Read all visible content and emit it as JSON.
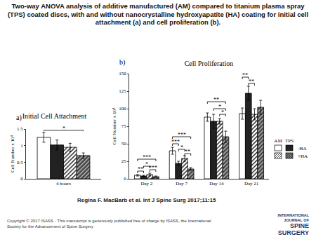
{
  "page": {
    "title": "Two-way ANOVA analysis of additive manufactured (AM) compared to titanium plasma spray (TPS) coated discs, with and without nanocrystalline hydroxyapatite (HA) coating for initial cell attachment (a) and cell proliferation (b).",
    "citation": "Regina F. MacBarb et al. Int J Spine Surg 2017;11:15",
    "copyright": "Copyright © 2017 ISASS - This manuscript is generously published free of charge by ISASS, the International Society for the Advancement of Spine Surgery",
    "logo": [
      "INTERNATIONAL",
      "JOURNAL OF",
      "SPINE",
      "SURGERY"
    ]
  },
  "chart_data": [
    {
      "type": "bar",
      "panel": "a)",
      "title": "Initial Cell Attachment",
      "y_label": "Cell Number x 10⁴",
      "categories": [
        "4 hours"
      ],
      "ylim": [
        0,
        1.5
      ],
      "yticks": [
        0,
        0.5,
        1,
        1.5
      ],
      "series": [
        {
          "material": "AM",
          "coating": "-HA",
          "color": "#ffffff",
          "marker": "solid",
          "values": [
            1.25
          ],
          "errors": [
            0.15
          ]
        },
        {
          "material": "TPS",
          "coating": "-HA",
          "color": "#222222",
          "marker": "solid",
          "values": [
            1.02
          ],
          "errors": [
            0.15
          ]
        },
        {
          "material": "AM",
          "coating": "+HA",
          "color": "#ffffff",
          "marker": "hatched",
          "values": [
            0.95
          ],
          "errors": [
            0.12
          ]
        },
        {
          "material": "TPS",
          "coating": "+HA",
          "color": "#444444",
          "marker": "hatched",
          "values": [
            0.7
          ],
          "errors": [
            0.08
          ]
        }
      ],
      "significance": [
        {
          "category": 0,
          "from": 0,
          "to": 3,
          "y": 1.46,
          "label": "*"
        }
      ]
    },
    {
      "type": "bar",
      "panel": "b)",
      "title": "Cell Proliferation",
      "y_label": "Cell Number x 10⁴",
      "categories": [
        "Day 2",
        "Day 7",
        "Day 14",
        "Day 21"
      ],
      "ylim": [
        0,
        150
      ],
      "yticks": [
        0,
        25,
        50,
        75,
        100,
        125,
        150
      ],
      "legend": "right",
      "series": [
        {
          "material": "AM",
          "coating": "-HA",
          "color": "#ffffff",
          "marker": "solid",
          "values": [
            5,
            40,
            88,
            93
          ],
          "errors": [
            1,
            5,
            6,
            8
          ]
        },
        {
          "material": "TPS",
          "coating": "-HA",
          "color": "#222222",
          "marker": "solid",
          "values": [
            4,
            22,
            82,
            122
          ],
          "errors": [
            1,
            3,
            10,
            10
          ]
        },
        {
          "material": "AM",
          "coating": "+HA",
          "color": "#ffffff",
          "marker": "hatched",
          "values": [
            6,
            29,
            82,
            92
          ],
          "errors": [
            2,
            4,
            4,
            8
          ]
        },
        {
          "material": "TPS",
          "coating": "+HA",
          "color": "#444444",
          "marker": "hatched",
          "values": [
            3,
            14,
            60,
            102
          ],
          "errors": [
            1,
            2,
            8,
            10
          ]
        }
      ],
      "significance": [
        {
          "category": 0,
          "from": 0,
          "to": 1,
          "y": 11,
          "label": "**"
        },
        {
          "category": 0,
          "from": 2,
          "to": 3,
          "y": 13,
          "label": "***"
        },
        {
          "category": 0,
          "from": 1,
          "to": 2,
          "y": 18,
          "label": "*"
        },
        {
          "category": 0,
          "from": 0,
          "to": 3,
          "y": 28,
          "label": "***"
        },
        {
          "category": 1,
          "from": 2,
          "to": 3,
          "y": 36,
          "label": "**"
        },
        {
          "category": 1,
          "from": 1,
          "to": 2,
          "y": 42,
          "label": "*"
        },
        {
          "category": 1,
          "from": 0,
          "to": 1,
          "y": 50,
          "label": "***"
        },
        {
          "category": 1,
          "from": 0,
          "to": 3,
          "y": 60,
          "label": "***"
        },
        {
          "category": 2,
          "from": 2,
          "to": 3,
          "y": 92,
          "label": "*"
        },
        {
          "category": 2,
          "from": 1,
          "to": 3,
          "y": 100,
          "label": "*"
        },
        {
          "category": 2,
          "from": 0,
          "to": 3,
          "y": 110,
          "label": "**"
        },
        {
          "category": 3,
          "from": 1,
          "to": 2,
          "y": 136,
          "label": "**"
        },
        {
          "category": 3,
          "from": 0,
          "to": 1,
          "y": 145,
          "label": "**"
        }
      ]
    }
  ]
}
